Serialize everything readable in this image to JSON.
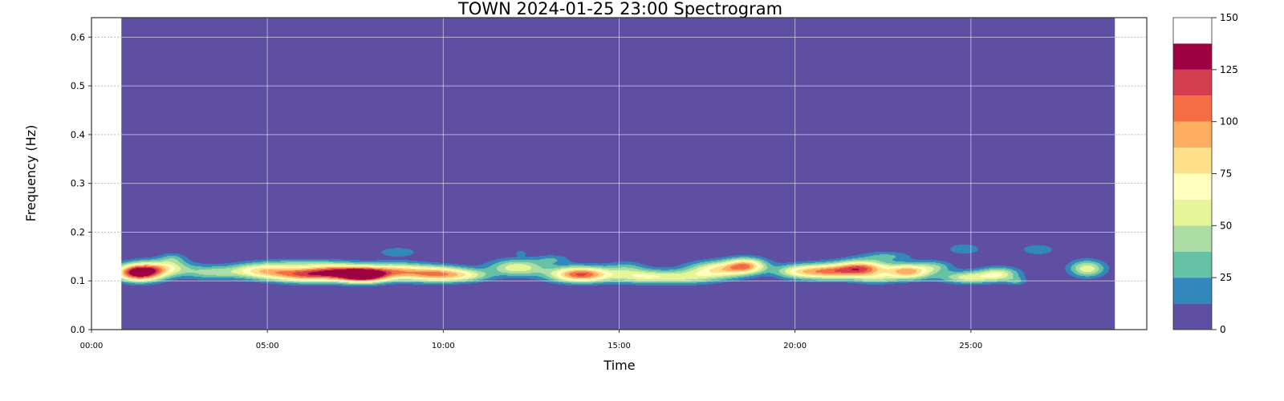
{
  "chart_data": {
    "type": "heatmap",
    "title": "TOWN 2024-01-25 23:00 Spectrogram",
    "xlabel": "Time",
    "ylabel": "Frequency (Hz)",
    "x_unit": "minutes",
    "xlim": [
      0,
      30
    ],
    "ylim": [
      0,
      0.64
    ],
    "x_ticks": [
      0,
      5,
      10,
      15,
      20,
      25
    ],
    "x_tick_labels": [
      "00:00",
      "05:00",
      "10:00",
      "15:00",
      "20:00",
      "25:00"
    ],
    "y_ticks": [
      0.0,
      0.1,
      0.2,
      0.3,
      0.4,
      0.5,
      0.6
    ],
    "y_tick_labels": [
      "0.0",
      "0.1",
      "0.2",
      "0.3",
      "0.4",
      "0.5",
      "0.6"
    ],
    "data_extent_x": [
      0.85,
      29.1
    ],
    "grid": true,
    "colorbar": {
      "levels": [
        0,
        12.5,
        25,
        37.5,
        50,
        62.5,
        75,
        87.5,
        100,
        112.5,
        125,
        137.5,
        150
      ],
      "colors": [
        "#5e4fa2",
        "#3288bd",
        "#66c2a5",
        "#abdda4",
        "#e6f598",
        "#ffffbf",
        "#fee08b",
        "#fdae61",
        "#f46d43",
        "#d53e4f",
        "#9e0142"
      ],
      "ticks": [
        0,
        25,
        50,
        75,
        100,
        125,
        150
      ],
      "tick_labels": [
        "0",
        "25",
        "50",
        "75",
        "100",
        "125",
        "150"
      ]
    },
    "energy_blobs": [
      {
        "t": 1.35,
        "f": 0.118,
        "amp": 150,
        "dt": 0.45,
        "df": 0.012
      },
      {
        "t": 2.1,
        "f": 0.128,
        "amp": 55,
        "dt": 0.5,
        "df": 0.012
      },
      {
        "t": 2.3,
        "f": 0.148,
        "amp": 22,
        "dt": 0.25,
        "df": 0.008
      },
      {
        "t": 3.4,
        "f": 0.118,
        "amp": 40,
        "dt": 0.55,
        "df": 0.01
      },
      {
        "t": 4.8,
        "f": 0.122,
        "amp": 70,
        "dt": 0.6,
        "df": 0.011
      },
      {
        "t": 5.9,
        "f": 0.138,
        "amp": 22,
        "dt": 0.6,
        "df": 0.006
      },
      {
        "t": 6.0,
        "f": 0.114,
        "amp": 95,
        "dt": 0.7,
        "df": 0.011
      },
      {
        "t": 7.0,
        "f": 0.12,
        "amp": 85,
        "dt": 0.6,
        "df": 0.012
      },
      {
        "t": 7.7,
        "f": 0.112,
        "amp": 140,
        "dt": 0.45,
        "df": 0.01
      },
      {
        "t": 8.6,
        "f": 0.12,
        "amp": 80,
        "dt": 0.6,
        "df": 0.012
      },
      {
        "t": 8.7,
        "f": 0.16,
        "amp": 24,
        "dt": 0.4,
        "df": 0.007
      },
      {
        "t": 9.8,
        "f": 0.115,
        "amp": 90,
        "dt": 0.6,
        "df": 0.011
      },
      {
        "t": 10.7,
        "f": 0.112,
        "amp": 40,
        "dt": 0.5,
        "df": 0.009
      },
      {
        "t": 12.1,
        "f": 0.128,
        "amp": 60,
        "dt": 0.55,
        "df": 0.012
      },
      {
        "t": 12.2,
        "f": 0.158,
        "amp": 18,
        "dt": 0.12,
        "df": 0.004
      },
      {
        "t": 13.1,
        "f": 0.145,
        "amp": 22,
        "dt": 0.35,
        "df": 0.007
      },
      {
        "t": 13.9,
        "f": 0.114,
        "amp": 115,
        "dt": 0.6,
        "df": 0.011
      },
      {
        "t": 15.2,
        "f": 0.128,
        "amp": 25,
        "dt": 0.4,
        "df": 0.01
      },
      {
        "t": 15.6,
        "f": 0.11,
        "amp": 50,
        "dt": 0.6,
        "df": 0.01
      },
      {
        "t": 16.8,
        "f": 0.108,
        "amp": 45,
        "dt": 0.7,
        "df": 0.01
      },
      {
        "t": 17.8,
        "f": 0.124,
        "amp": 70,
        "dt": 0.6,
        "df": 0.012
      },
      {
        "t": 18.6,
        "f": 0.132,
        "amp": 85,
        "dt": 0.4,
        "df": 0.011
      },
      {
        "t": 20.0,
        "f": 0.12,
        "amp": 45,
        "dt": 0.45,
        "df": 0.01
      },
      {
        "t": 20.9,
        "f": 0.12,
        "amp": 90,
        "dt": 0.6,
        "df": 0.011
      },
      {
        "t": 21.9,
        "f": 0.126,
        "amp": 100,
        "dt": 0.5,
        "df": 0.012
      },
      {
        "t": 22.3,
        "f": 0.105,
        "amp": 30,
        "dt": 0.4,
        "df": 0.008
      },
      {
        "t": 22.6,
        "f": 0.152,
        "amp": 25,
        "dt": 0.5,
        "df": 0.007
      },
      {
        "t": 23.2,
        "f": 0.12,
        "amp": 95,
        "dt": 0.45,
        "df": 0.011
      },
      {
        "t": 24.0,
        "f": 0.13,
        "amp": 30,
        "dt": 0.35,
        "df": 0.009
      },
      {
        "t": 24.8,
        "f": 0.166,
        "amp": 24,
        "dt": 0.35,
        "df": 0.008
      },
      {
        "t": 24.9,
        "f": 0.108,
        "amp": 55,
        "dt": 0.55,
        "df": 0.009
      },
      {
        "t": 25.8,
        "f": 0.115,
        "amp": 55,
        "dt": 0.4,
        "df": 0.01
      },
      {
        "t": 26.3,
        "f": 0.1,
        "amp": 22,
        "dt": 0.2,
        "df": 0.006
      },
      {
        "t": 26.9,
        "f": 0.165,
        "amp": 24,
        "dt": 0.35,
        "df": 0.008
      },
      {
        "t": 28.3,
        "f": 0.126,
        "amp": 60,
        "dt": 0.35,
        "df": 0.012
      }
    ]
  }
}
